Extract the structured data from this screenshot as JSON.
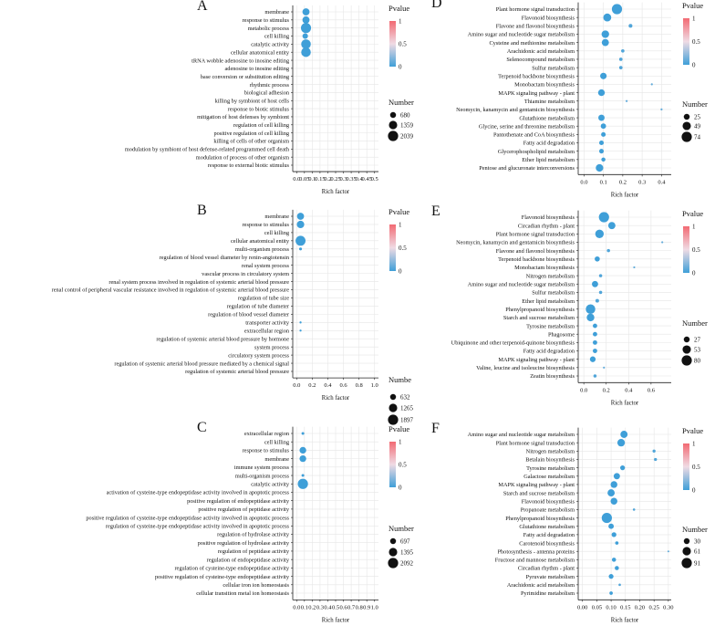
{
  "figure": {
    "legend_pvalue_title": "Pvalue",
    "x_axis_label": "Rich factor"
  },
  "colors": {
    "gradient_top": "#f26a73",
    "gradient_mid": "#f0dbe4",
    "gradient_bottom": "#3f9fd8",
    "point": "#3f9fd8",
    "axis": "#222222",
    "grid": "#e6e6e6"
  },
  "chart_data": [
    {
      "type": "scatter",
      "panel": "A",
      "xlabel": "Rich factor",
      "xticks": [
        "0.0",
        "0.05",
        "0.1",
        "0.15",
        "0.2",
        "0.25",
        "0.3",
        "0.35",
        "0.4",
        "0.45",
        "0.5"
      ],
      "xlim": [
        -0.025,
        0.525
      ],
      "pvalue_title": "Pvalue",
      "pvalue_ticks": [
        "1",
        "0.5",
        "0"
      ],
      "size_title": "Number",
      "size_legend": [
        680,
        1359,
        2039
      ],
      "categories": [
        "membrane",
        "response to stimulus",
        "metabolic process",
        "cell killing",
        "catalytic activity",
        "cellular anatomical entity",
        "tRNA wobble adenosine to inosine editing",
        "adenosine to inosine editing",
        "base conversion or substitution editing",
        "rhythmic process",
        "biological adhesion",
        "killing by symbiont of host cells",
        "response to biotic stimulus",
        "mitigation of host defenses by symbiont",
        "regulation of cell killing",
        "positive regulation of cell killing",
        "killing of cells of other organism",
        "modulation by symbiont of host defense-related programmed cell death",
        "modulation of process of other organism",
        "response to external biotic stimulus"
      ],
      "x": [
        0.06,
        0.06,
        0.06,
        0.055,
        0.06,
        0.06,
        null,
        null,
        null,
        null,
        null,
        null,
        null,
        null,
        null,
        null,
        null,
        null,
        null,
        null
      ],
      "count": [
        1000,
        1000,
        2000,
        600,
        1800,
        1800,
        null,
        null,
        null,
        null,
        null,
        null,
        null,
        null,
        null,
        null,
        null,
        null,
        null,
        null
      ],
      "pvalue": [
        0,
        0,
        0,
        0,
        0,
        0,
        null,
        null,
        null,
        null,
        null,
        null,
        null,
        null,
        null,
        null,
        null,
        null,
        null,
        null
      ]
    },
    {
      "type": "scatter",
      "panel": "B",
      "xlabel": "Rich factor",
      "xticks": [
        "0.0",
        "0.2",
        "0.4",
        "0.6",
        "0.8",
        "1.0"
      ],
      "xlim": [
        -0.05,
        1.05
      ],
      "pvalue_title": "Pvalue",
      "pvalue_ticks": [
        "1",
        "0.5",
        "0"
      ],
      "size_title": "Numbe",
      "size_legend": [
        632,
        1265,
        1897
      ],
      "categories": [
        "membrane",
        "response to stimulus",
        "cell killing",
        "cellular anatomical entity",
        "multi-organism process",
        "regulation of blood vessel diameter by renin-angiotensin",
        "renal system process",
        "vascular process in circulatory system",
        "renal system process involved in regulation of systemic arterial blood pressure",
        "renal control of peripheral vascular resistance involved in regulation of systemic arterial blood pressure",
        "regulation of tube size",
        "regulation of tube diameter",
        "regulation of blood vessel diameter",
        "transporter activity",
        "extracellular region",
        "regulation of systemic arterial blood pressure by hormone",
        "system process",
        "circulatory system process",
        "regulation of systemic arterial blood pressure mediated by a chemical signal",
        "regulation of systemic arterial blood pressure"
      ],
      "x": [
        0.05,
        0.05,
        null,
        0.05,
        0.05,
        null,
        null,
        null,
        null,
        null,
        null,
        null,
        null,
        0.05,
        0.05,
        null,
        null,
        null,
        null,
        null
      ],
      "count": [
        900,
        1000,
        null,
        1800,
        150,
        null,
        null,
        null,
        null,
        null,
        null,
        null,
        null,
        80,
        80,
        null,
        null,
        null,
        null,
        null
      ],
      "pvalue": [
        0,
        0,
        null,
        0,
        0,
        null,
        null,
        null,
        null,
        null,
        null,
        null,
        null,
        0,
        0,
        null,
        null,
        null,
        null,
        null
      ]
    },
    {
      "type": "scatter",
      "panel": "C",
      "xlabel": "Rich factor",
      "xticks": [
        "0.0",
        "0.1",
        "0.2",
        "0.3",
        "0.4",
        "0.5",
        "0.6",
        "0.7",
        "0.8",
        "0.9",
        "1.0"
      ],
      "xlim": [
        -0.05,
        1.05
      ],
      "pvalue_title": "Pvalue",
      "pvalue_ticks": [
        "1",
        "0.5",
        "0"
      ],
      "size_title": "Number",
      "size_legend": [
        697,
        1395,
        2092
      ],
      "categories": [
        "extracellular region",
        "cell killing",
        "response to stimulus",
        "membrane",
        "immune system process",
        "multi-organism process",
        "catalytic activity",
        "activation of cysteine-type endopeptidase activity involved in apoptotic process",
        "positive regulation of endopeptidase activity",
        "positive regulation of peptidase activity",
        "positive regulation of cysteine-type endopeptidase activity involved in apoptotic process",
        "regulation of cysteine-type endopeptidase activity involved in apoptotic process",
        "regulation of hydrolase activity",
        "positive regulation of hydrolase activity",
        "regulation of peptidase activity",
        "regulation of endopeptidase activity",
        "regulation of cysteine-type endopeptidase activity",
        "positive regulation of cysteine-type endopeptidase activity",
        "cellular iron ion homeostasis",
        "cellular transition metal ion homeostasis"
      ],
      "x": [
        0.08,
        null,
        0.08,
        0.08,
        null,
        0.08,
        0.08,
        null,
        null,
        null,
        null,
        null,
        null,
        null,
        null,
        null,
        null,
        null,
        null,
        null
      ],
      "count": [
        150,
        null,
        900,
        900,
        null,
        150,
        2092,
        null,
        null,
        null,
        null,
        null,
        null,
        null,
        null,
        null,
        null,
        null,
        null,
        null
      ],
      "pvalue": [
        0,
        null,
        0,
        0,
        null,
        0,
        0,
        null,
        null,
        null,
        null,
        null,
        null,
        null,
        null,
        null,
        null,
        null,
        null,
        null
      ]
    },
    {
      "type": "scatter",
      "panel": "D",
      "xlabel": "Rich factor",
      "xticks": [
        "0.0",
        "0.1",
        "0.2",
        "0.3",
        "0.4"
      ],
      "xlim": [
        -0.03,
        0.45
      ],
      "pvalue_title": "Pvalue",
      "pvalue_ticks": [
        "1",
        "0.5",
        "0"
      ],
      "size_title": "Number",
      "size_legend": [
        25,
        49,
        74
      ],
      "categories": [
        "Plant hormone signal transduction",
        "Flavonoid biosynthesis",
        "Flavone and flavonol biosynthesis",
        "Amino sugar and nucleotide sugar metabolism",
        "Cysteine and methionine metabolism",
        "Arachidonic acid metabolism",
        "Selenocompound metabolism",
        "Sulfur metabolism",
        "Terpenoid backbone biosynthesis",
        "Monobactam biosynthesis",
        "MAPK signaling pathway - plant",
        "Thiamine metabolism",
        "Neomycin, kanamycin and gentamicin biosynthesis",
        "Glutathione metabolism",
        "Glycine, serine and threonine metabolism",
        "Pantothenate and CoA biosynthesis",
        "Fatty acid degradation",
        "Glycerophospholipid metabolism",
        "Ether lipid metabolism",
        "Pentose and glucuronate interconversions"
      ],
      "x": [
        0.17,
        0.12,
        0.24,
        0.11,
        0.11,
        0.2,
        0.19,
        0.19,
        0.1,
        0.35,
        0.09,
        0.22,
        0.4,
        0.09,
        0.1,
        0.1,
        0.09,
        0.09,
        0.1,
        0.08
      ],
      "count": [
        74,
        45,
        10,
        40,
        36,
        8,
        8,
        8,
        30,
        3,
        32,
        3,
        3,
        28,
        20,
        15,
        15,
        15,
        12,
        40
      ],
      "pvalue": [
        0,
        0,
        0.05,
        0,
        0,
        0.05,
        0.05,
        0.05,
        0,
        0.1,
        0,
        0.1,
        0.1,
        0,
        0,
        0,
        0,
        0,
        0,
        0
      ]
    },
    {
      "type": "scatter",
      "panel": "E",
      "xlabel": "Rich factor",
      "xticks": [
        "0.0",
        "0.2",
        "0.4",
        "0.6"
      ],
      "xlim": [
        -0.05,
        0.78
      ],
      "pvalue_title": "Pvalue",
      "pvalue_ticks": [
        "1",
        "0.5",
        "0"
      ],
      "size_title": "Number",
      "size_legend": [
        27,
        53,
        80
      ],
      "categories": [
        "Flavonoid biosynthesis",
        "Circadian rhythm - plant",
        "Plant hormone signal transduction",
        "Neomycin, kanamycin and gentamicin biosynthesis",
        "Flavone and flavonol biosynthesis",
        "Terpenoid backbone biosynthesis",
        "Monobactam biosynthesis",
        "Nitrogen metabolism",
        "Amino sugar and nucleotide sugar metabolism",
        "Sulfur metabolism",
        "Ether lipid metabolism",
        "Phenylpropanoid biosynthesis",
        "Starch and sucrose metabolism",
        "Tyrosine metabolism",
        "Phagosome",
        "Ubiquinone and other terpenoid-quinone biosynthesis",
        "Fatty acid degradation",
        "MAPK signaling pathway - plant",
        "Valine, leucine and isoleucine biosynthesis",
        "Zeatin biosynthesis"
      ],
      "x": [
        0.18,
        0.25,
        0.14,
        0.7,
        0.22,
        0.12,
        0.45,
        0.15,
        0.1,
        0.15,
        0.12,
        0.06,
        0.06,
        0.1,
        0.1,
        0.1,
        0.1,
        0.08,
        0.18,
        0.1
      ],
      "count": [
        80,
        40,
        55,
        3,
        8,
        20,
        3,
        8,
        30,
        8,
        10,
        70,
        45,
        15,
        15,
        15,
        15,
        25,
        3,
        8
      ],
      "pvalue": [
        0,
        0,
        0,
        0.1,
        0.05,
        0,
        0.1,
        0.05,
        0,
        0.05,
        0.05,
        0,
        0,
        0,
        0,
        0,
        0,
        0,
        0.1,
        0.05
      ]
    },
    {
      "type": "scatter",
      "panel": "F",
      "xlabel": "Rich factor",
      "xticks": [
        "0.00",
        "0.05",
        "0.10",
        "0.15",
        "0.20",
        "0.25",
        "0.30"
      ],
      "xlim": [
        -0.015,
        0.31
      ],
      "pvalue_title": "Pvalue",
      "pvalue_ticks": [
        "1",
        "0.5",
        "0"
      ],
      "size_title": "Number",
      "size_legend": [
        30,
        61,
        91
      ],
      "categories": [
        "Amino sugar and nucleotide sugar metabolism",
        "Plant hormone signal transduction",
        "Nitrogen metabolism",
        "Betalain biosynthesis",
        "Tyrosine metabolism",
        "Galactose metabolism",
        "MAPK signaling pathway - plant",
        "Starch and sucrose metabolism",
        "Flavonoid biosynthesis",
        "Propanoate metabolism",
        "Phenylpropanoid biosynthesis",
        "Glutathione metabolism",
        "Fatty acid degradation",
        "Carotenoid biosynthesis",
        "Photosynthesis - antenna proteins",
        "Fructose and mannose metabolism",
        "Circadian rhythm - plant",
        "Pyruvate metabolism",
        "Arachidonic acid metabolism",
        "Pyrimidine metabolism"
      ],
      "x": [
        0.145,
        0.135,
        0.25,
        0.255,
        0.14,
        0.12,
        0.11,
        0.1,
        0.11,
        0.18,
        0.085,
        0.1,
        0.11,
        0.12,
        0.3,
        0.11,
        0.12,
        0.1,
        0.13,
        0.1
      ],
      "count": [
        45,
        50,
        8,
        8,
        20,
        35,
        40,
        45,
        40,
        5,
        91,
        25,
        20,
        10,
        3,
        15,
        15,
        20,
        5,
        10
      ],
      "pvalue": [
        0,
        0,
        0.05,
        0.05,
        0,
        0,
        0,
        0,
        0,
        0.05,
        0,
        0,
        0,
        0,
        0.1,
        0,
        0,
        0,
        0.05,
        0
      ]
    }
  ]
}
